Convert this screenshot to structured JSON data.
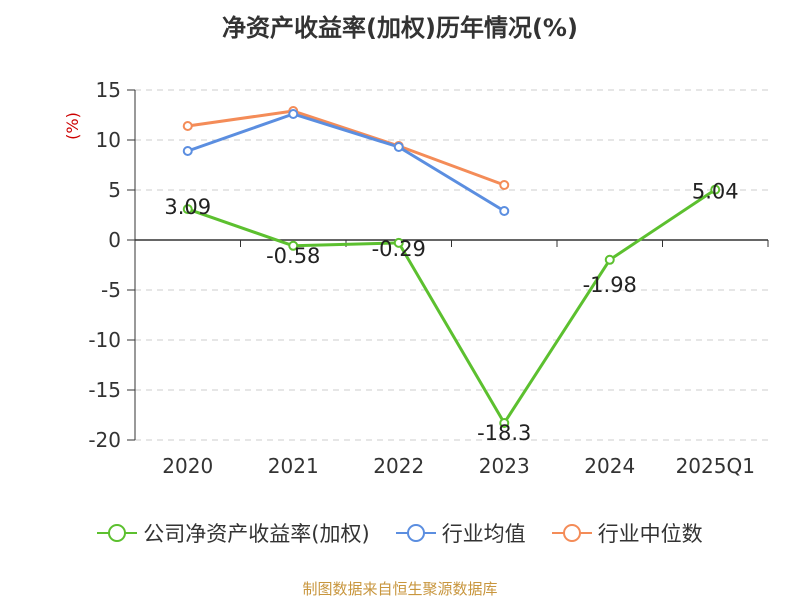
{
  "chart_data": {
    "type": "line",
    "title": "净资产收益率(加权)历年情况(%)",
    "ylabel": "(%)",
    "xlabel": "",
    "categories": [
      "2020",
      "2021",
      "2022",
      "2023",
      "2024",
      "2025Q1"
    ],
    "ylim": [
      -20,
      15
    ],
    "yticks": [
      15,
      10,
      5,
      0,
      -5,
      -10,
      -15,
      -20
    ],
    "grid": true,
    "legend_position": "bottom",
    "series": [
      {
        "name": "公司净资产收益率(加权)",
        "color": "#5cc02f",
        "values": [
          3.09,
          -0.58,
          -0.29,
          -18.3,
          -1.98,
          5.04
        ],
        "labels": [
          "3.09",
          "-0.58",
          "-0.29",
          "-18.3",
          "-1.98",
          "5.04"
        ]
      },
      {
        "name": "行业均值",
        "color": "#5b8ee0",
        "values": [
          8.9,
          12.6,
          9.3,
          2.9,
          null,
          null
        ]
      },
      {
        "name": "行业中位数",
        "color": "#f48c58",
        "values": [
          11.4,
          12.9,
          9.4,
          5.5,
          null,
          null
        ]
      }
    ]
  },
  "source": "制图数据来自恒生聚源数据库"
}
